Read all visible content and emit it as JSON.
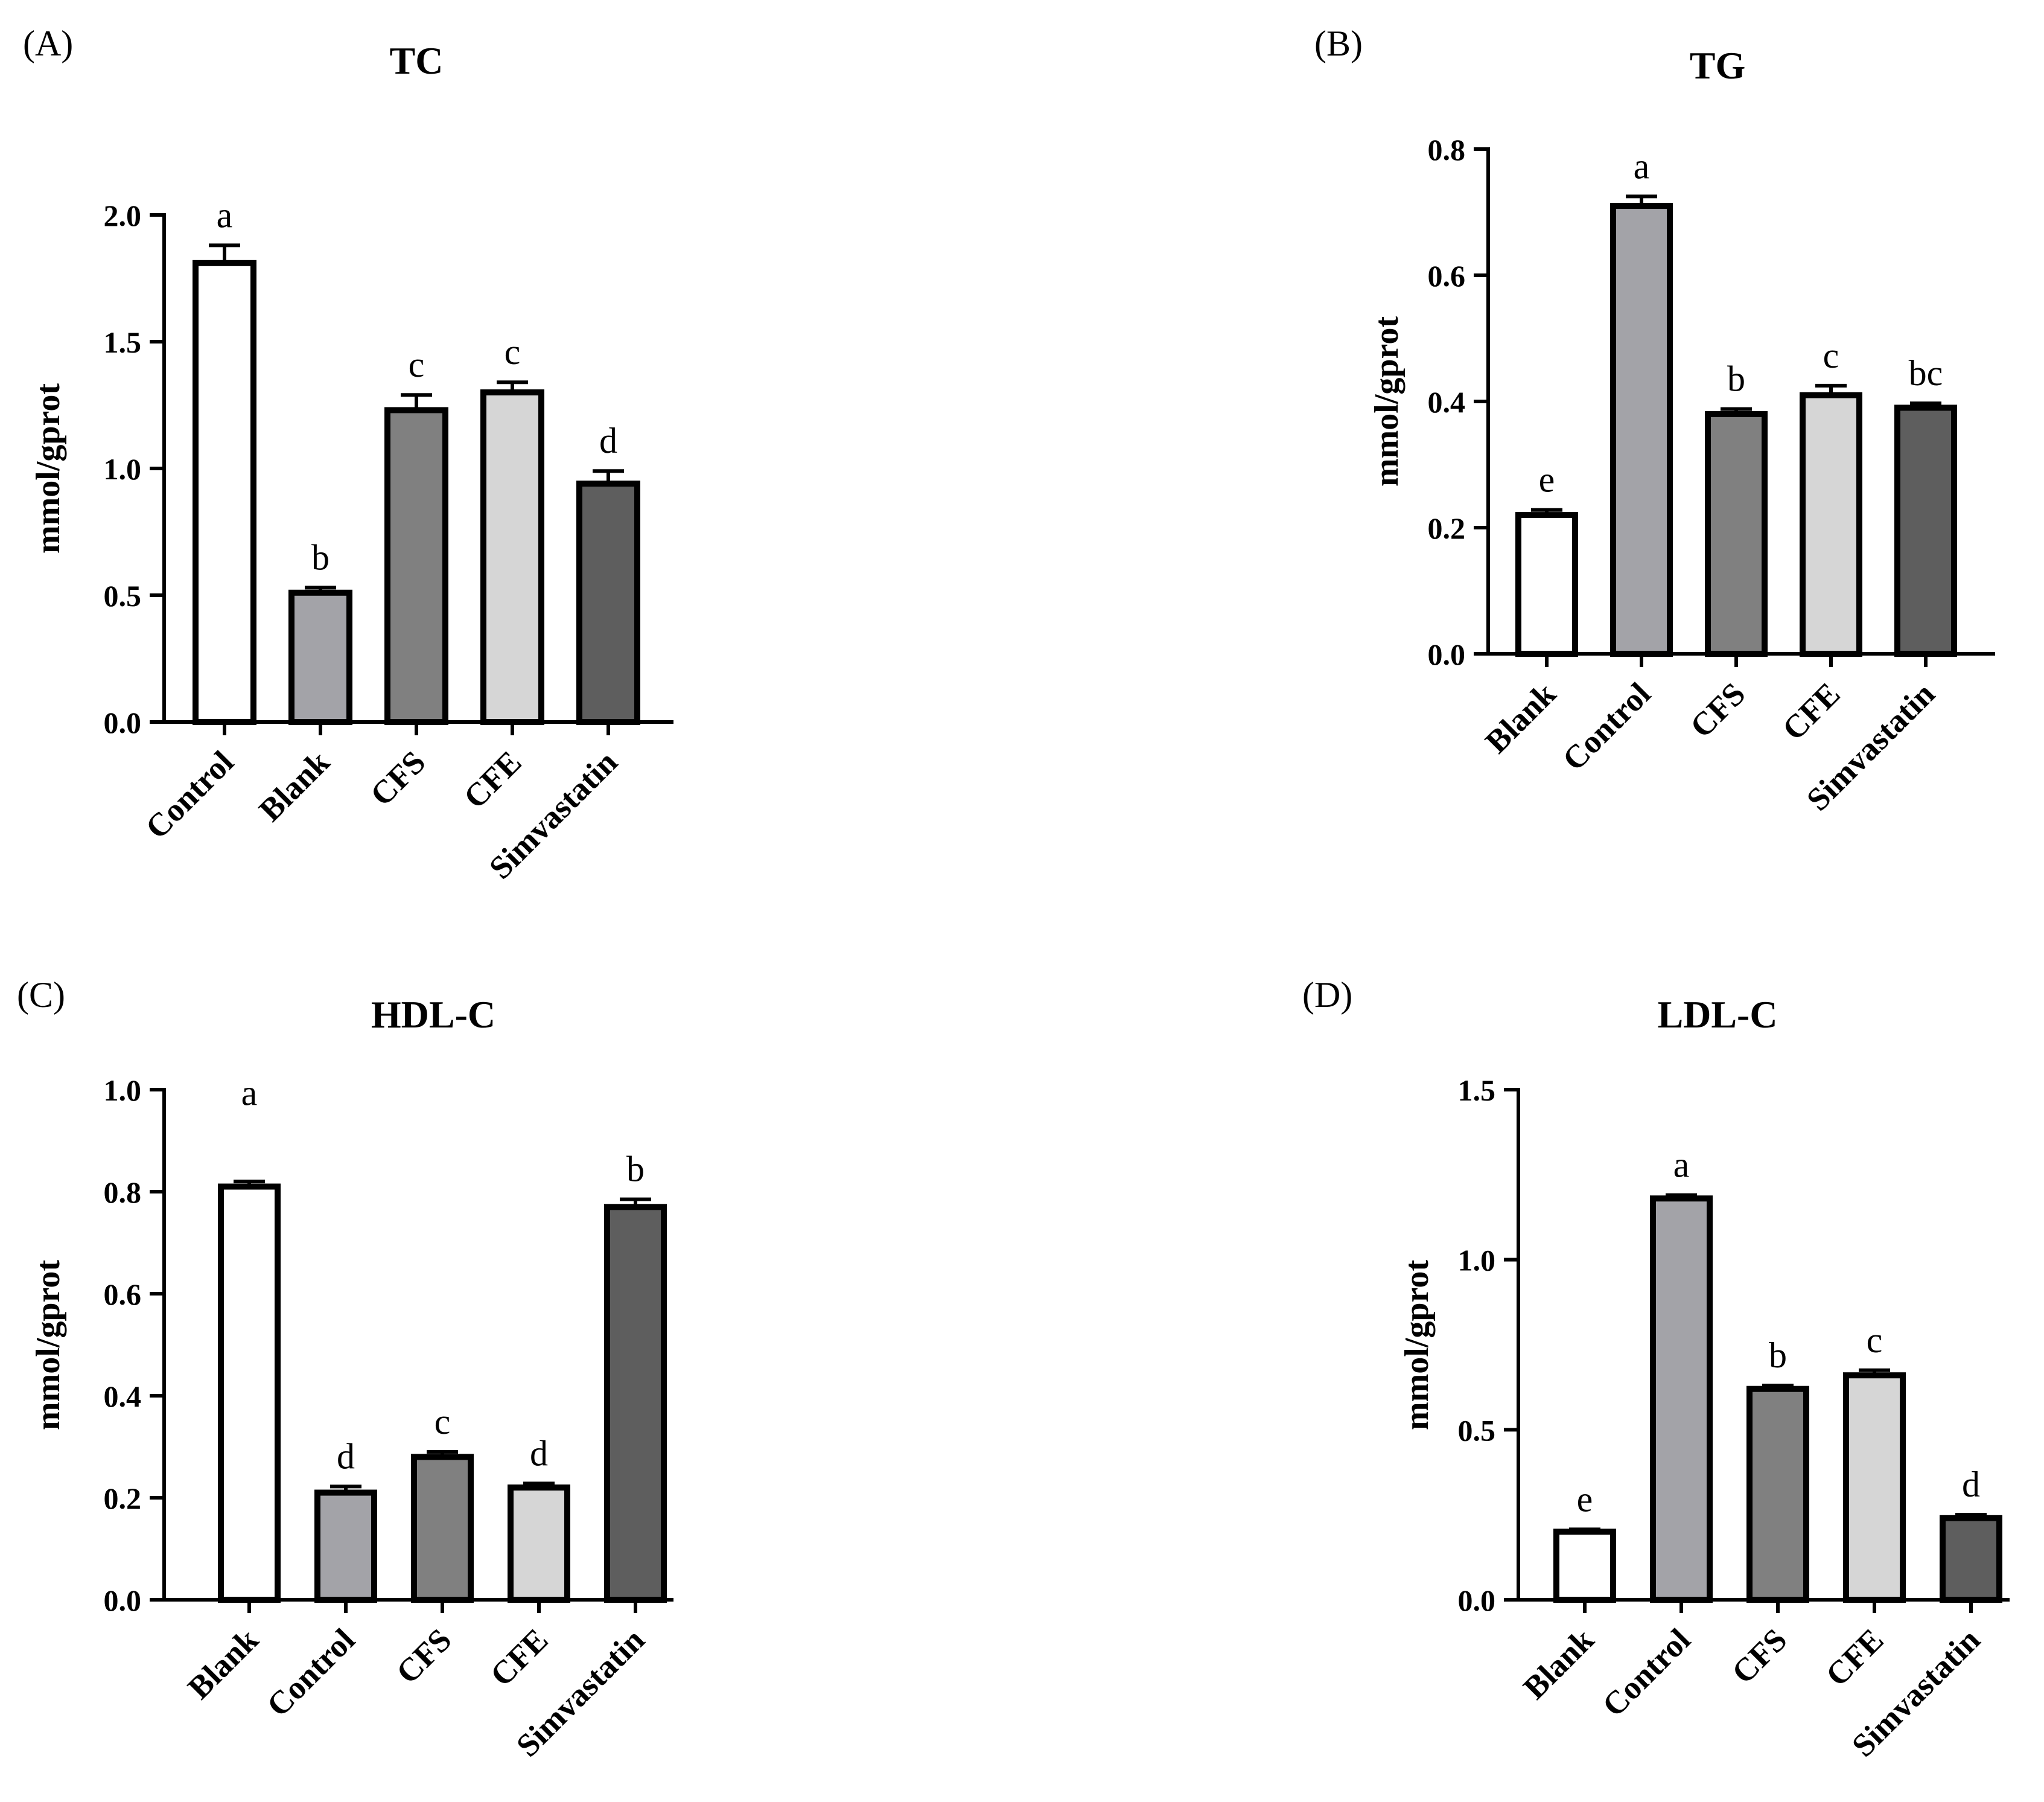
{
  "figure": {
    "bar_colors": [
      "#ffffff",
      "#a3a3a8",
      "#808080",
      "#d6d6d6",
      "#5e5e5e"
    ],
    "outline_color": "#000000"
  },
  "chart_data": [
    {
      "panel_label": "(A)",
      "type": "bar",
      "title": "TC",
      "ylabel": "mmol/gprot",
      "xlabel": "",
      "ylim": [
        0,
        2.0
      ],
      "yticks": [
        "0.0",
        "0.5",
        "1.0",
        "1.5",
        "2.0"
      ],
      "categories": [
        "Control",
        "Blank",
        "CFS",
        "CFE",
        "Simvastatin"
      ],
      "values": [
        1.81,
        0.51,
        1.23,
        1.3,
        0.94
      ],
      "errors": [
        0.07,
        0.02,
        0.06,
        0.04,
        0.05
      ],
      "significance": [
        "a",
        "b",
        "c",
        "c",
        "d"
      ],
      "color_index": [
        0,
        1,
        2,
        3,
        4
      ]
    },
    {
      "panel_label": "(B)",
      "type": "bar",
      "title": "TG",
      "ylabel": "mmol/gprot",
      "xlabel": "",
      "ylim": [
        0,
        0.8
      ],
      "yticks": [
        "0.0",
        "0.2",
        "0.4",
        "0.6",
        "0.8"
      ],
      "categories": [
        "Blank",
        "Control",
        "CFS",
        "CFE",
        "Simvastatin"
      ],
      "values": [
        0.22,
        0.71,
        0.38,
        0.41,
        0.39
      ],
      "errors": [
        0.008,
        0.015,
        0.008,
        0.015,
        0.007
      ],
      "significance": [
        "e",
        "a",
        "b",
        "c",
        "bc"
      ],
      "color_index": [
        0,
        1,
        2,
        3,
        4
      ]
    },
    {
      "panel_label": "(C)",
      "type": "bar",
      "title": "HDL-C",
      "ylabel": "mmol/gprot",
      "xlabel": "",
      "ylim": [
        0,
        1.0
      ],
      "yticks": [
        "0.0",
        "0.2",
        "0.4",
        "0.6",
        "0.8",
        "1.0"
      ],
      "categories": [
        "Blank",
        "Control",
        "CFS",
        "CFE",
        "Simvastatin"
      ],
      "values": [
        0.81,
        0.21,
        0.28,
        0.22,
        0.77
      ],
      "errors": [
        0.01,
        0.012,
        0.01,
        0.008,
        0.015
      ],
      "significance": [
        "a",
        "d",
        "c",
        "d",
        "b"
      ],
      "color_index": [
        0,
        1,
        2,
        3,
        4
      ]
    },
    {
      "panel_label": "(D)",
      "type": "bar",
      "title": "LDL-C",
      "ylabel": "mmol/gprot",
      "xlabel": "",
      "ylim": [
        0,
        1.5
      ],
      "yticks": [
        "0.0",
        "0.5",
        "1.0",
        "1.5"
      ],
      "categories": [
        "Blank",
        "Control",
        "CFS",
        "CFE",
        "Simvastatin"
      ],
      "values": [
        0.2,
        1.18,
        0.62,
        0.66,
        0.24
      ],
      "errors": [
        0.007,
        0.01,
        0.01,
        0.015,
        0.01
      ],
      "significance": [
        "e",
        "a",
        "b",
        "c",
        "d"
      ],
      "color_index": [
        0,
        1,
        2,
        3,
        4
      ]
    }
  ]
}
